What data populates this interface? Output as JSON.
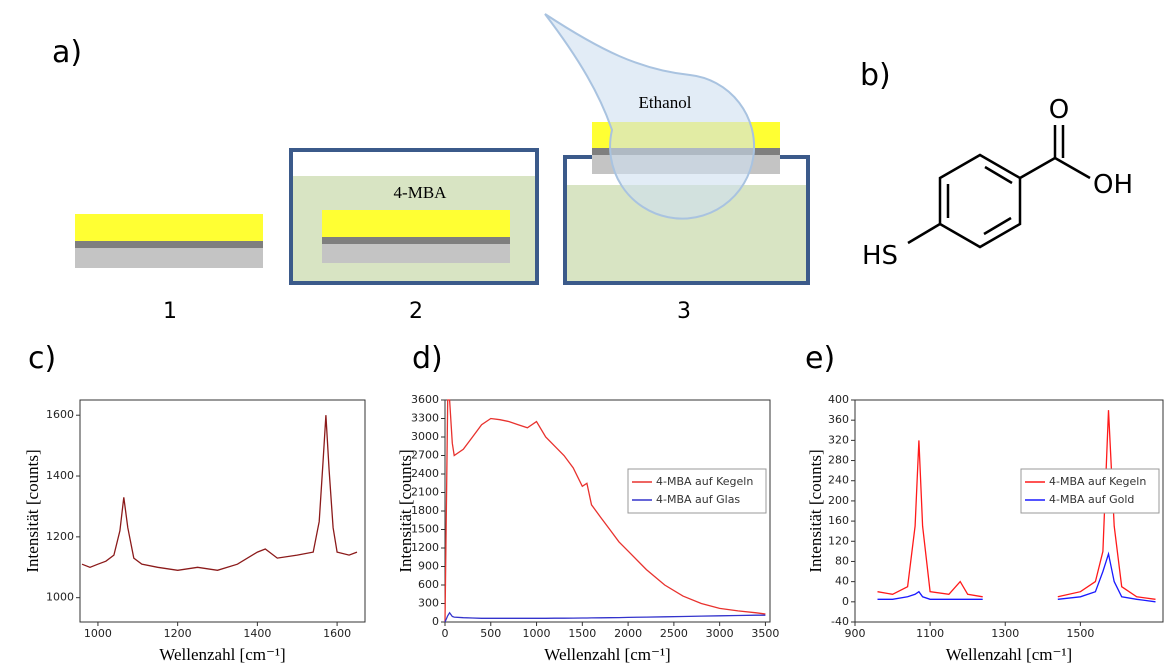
{
  "figure": {
    "panel_labels": [
      "a)",
      "b)",
      "c)",
      "d)",
      "e)"
    ],
    "steps": [
      "1",
      "2",
      "3"
    ],
    "solution": "4-MBA",
    "rinse": "Ethanol",
    "molecule": {
      "oxygen": "O",
      "hydroxyl": "OH",
      "thiol": "HS"
    }
  },
  "chart_data": [
    {
      "type": "line",
      "x_label": "Wellenzahl [cm⁻¹]",
      "y_label": "Intensität [counts]",
      "x": [
        960,
        980,
        1000,
        1020,
        1040,
        1055,
        1065,
        1075,
        1090,
        1110,
        1150,
        1200,
        1250,
        1300,
        1350,
        1400,
        1420,
        1450,
        1500,
        1540,
        1555,
        1565,
        1572,
        1580,
        1590,
        1600,
        1630,
        1650
      ],
      "series": [
        {
          "color": "#8b1a1a",
          "values": [
            1110,
            1100,
            1110,
            1120,
            1140,
            1220,
            1330,
            1230,
            1130,
            1110,
            1100,
            1090,
            1100,
            1090,
            1110,
            1150,
            1160,
            1130,
            1140,
            1150,
            1250,
            1450,
            1600,
            1420,
            1230,
            1150,
            1140,
            1150
          ]
        }
      ],
      "xlim": [
        955,
        1670
      ],
      "xticks": [
        1000,
        1200,
        1400,
        1600
      ],
      "ylim": [
        920,
        1650
      ],
      "yticks": [
        1000,
        1200,
        1400,
        1600
      ]
    },
    {
      "type": "line",
      "x_label": "Wellenzahl [cm⁻¹]",
      "y_label": "Intensität [counts]",
      "legend": "center right",
      "x": [
        0,
        30,
        50,
        80,
        100,
        200,
        300,
        400,
        500,
        600,
        700,
        800,
        900,
        1000,
        1100,
        1200,
        1300,
        1400,
        1500,
        1550,
        1600,
        1700,
        1800,
        1900,
        2000,
        2200,
        2400,
        2600,
        2800,
        3000,
        3200,
        3400,
        3500
      ],
      "series": [
        {
          "name": "4-MBA auf Kegeln",
          "color": "#e8322e",
          "values": [
            0,
            3600,
            3600,
            2900,
            2700,
            2800,
            3000,
            3200,
            3300,
            3280,
            3250,
            3200,
            3150,
            3250,
            3000,
            2850,
            2700,
            2500,
            2200,
            2250,
            1900,
            1700,
            1500,
            1300,
            1150,
            850,
            600,
            420,
            300,
            220,
            180,
            150,
            130
          ]
        },
        {
          "name": "4-MBA auf Glas",
          "color": "#3333cc",
          "values": [
            0,
            100,
            150,
            90,
            80,
            70,
            65,
            60,
            60,
            60,
            60,
            60,
            60,
            60,
            60,
            62,
            62,
            64,
            65,
            65,
            66,
            68,
            70,
            72,
            75,
            80,
            85,
            90,
            95,
            100,
            105,
            110,
            110
          ]
        }
      ],
      "xlim": [
        0,
        3550
      ],
      "xticks": [
        0,
        500,
        1000,
        1500,
        2000,
        2500,
        3000,
        3500
      ],
      "ylim": [
        0,
        3600
      ],
      "yticks": [
        0,
        300,
        600,
        900,
        1200,
        1500,
        1800,
        2100,
        2400,
        2700,
        3000,
        3300,
        3600
      ]
    },
    {
      "type": "line",
      "x_label": "Wellenzahl [cm⁻¹]",
      "y_label": "Intensität [counts]",
      "legend": "center right",
      "x": [
        960,
        1000,
        1040,
        1060,
        1070,
        1080,
        1100,
        1150,
        1180,
        1200,
        1240,
        1340,
        1440,
        1500,
        1540,
        1560,
        1575,
        1590,
        1610,
        1650,
        1700
      ],
      "series": [
        {
          "name": "4-MBA auf Kegeln",
          "color": "#ff1a1a",
          "values": [
            20,
            15,
            30,
            150,
            320,
            150,
            20,
            15,
            40,
            15,
            10,
            null,
            10,
            20,
            40,
            100,
            380,
            150,
            30,
            10,
            5
          ]
        },
        {
          "name": "4-MBA auf Gold",
          "color": "#1a1aff",
          "values": [
            5,
            5,
            10,
            15,
            20,
            10,
            5,
            5,
            5,
            5,
            5,
            null,
            5,
            10,
            20,
            60,
            95,
            40,
            10,
            5,
            0
          ]
        }
      ],
      "xlim": [
        900,
        1720
      ],
      "xticks": [
        900,
        1100,
        1300,
        1500
      ],
      "ylim": [
        -40,
        400
      ],
      "yticks": [
        -40,
        0,
        40,
        80,
        120,
        160,
        200,
        240,
        280,
        320,
        360,
        400
      ]
    }
  ]
}
